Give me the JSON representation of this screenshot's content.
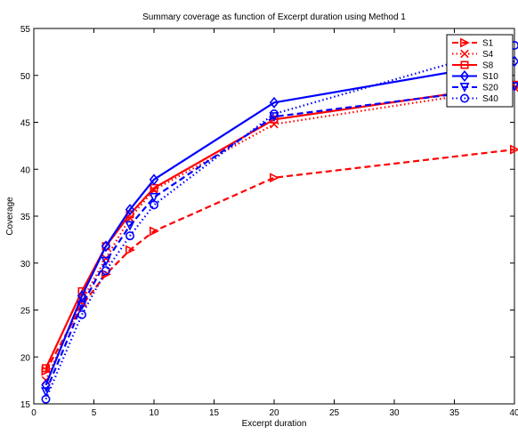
{
  "chart_data": {
    "type": "line",
    "title": "Summary coverage as function of Excerpt duration using Method 1",
    "xlabel": "Excerpt duration",
    "ylabel": "Coverage",
    "xlim": [
      0,
      40
    ],
    "ylim": [
      15,
      55
    ],
    "xticks": [
      0,
      5,
      10,
      15,
      20,
      25,
      30,
      35,
      40
    ],
    "yticks": [
      15,
      20,
      25,
      30,
      35,
      40,
      45,
      50,
      55
    ],
    "grid": false,
    "legend_position": "top-right",
    "x": [
      1,
      4,
      6,
      8,
      10,
      20,
      40
    ],
    "series": [
      {
        "name": "S1",
        "color": "#ff0000",
        "dash": "dashed",
        "marker": "triangle-right",
        "values": [
          18.5,
          25.5,
          28.8,
          31.4,
          33.4,
          39.1,
          42.1
        ]
      },
      {
        "name": "S4",
        "color": "#ff0000",
        "dash": "dotted",
        "marker": "x",
        "values": [
          17.5,
          26.0,
          30.5,
          34.8,
          37.8,
          44.8,
          48.7
        ]
      },
      {
        "name": "S8",
        "color": "#ff0000",
        "dash": "solid",
        "marker": "square",
        "values": [
          18.8,
          27.0,
          31.8,
          35.2,
          38.0,
          45.3,
          49.0
        ]
      },
      {
        "name": "S10",
        "color": "#0000ff",
        "dash": "solid",
        "marker": "diamond",
        "values": [
          17.0,
          26.5,
          31.8,
          35.7,
          38.9,
          47.1,
          51.5
        ]
      },
      {
        "name": "S20",
        "color": "#0000ff",
        "dash": "dashed",
        "marker": "triangle-down",
        "values": [
          16.3,
          25.5,
          30.2,
          34.0,
          37.0,
          45.6,
          48.8
        ]
      },
      {
        "name": "S40",
        "color": "#0000ff",
        "dash": "dotted",
        "marker": "circle",
        "values": [
          15.5,
          24.5,
          29.2,
          32.9,
          36.2,
          45.9,
          53.2
        ]
      }
    ]
  }
}
